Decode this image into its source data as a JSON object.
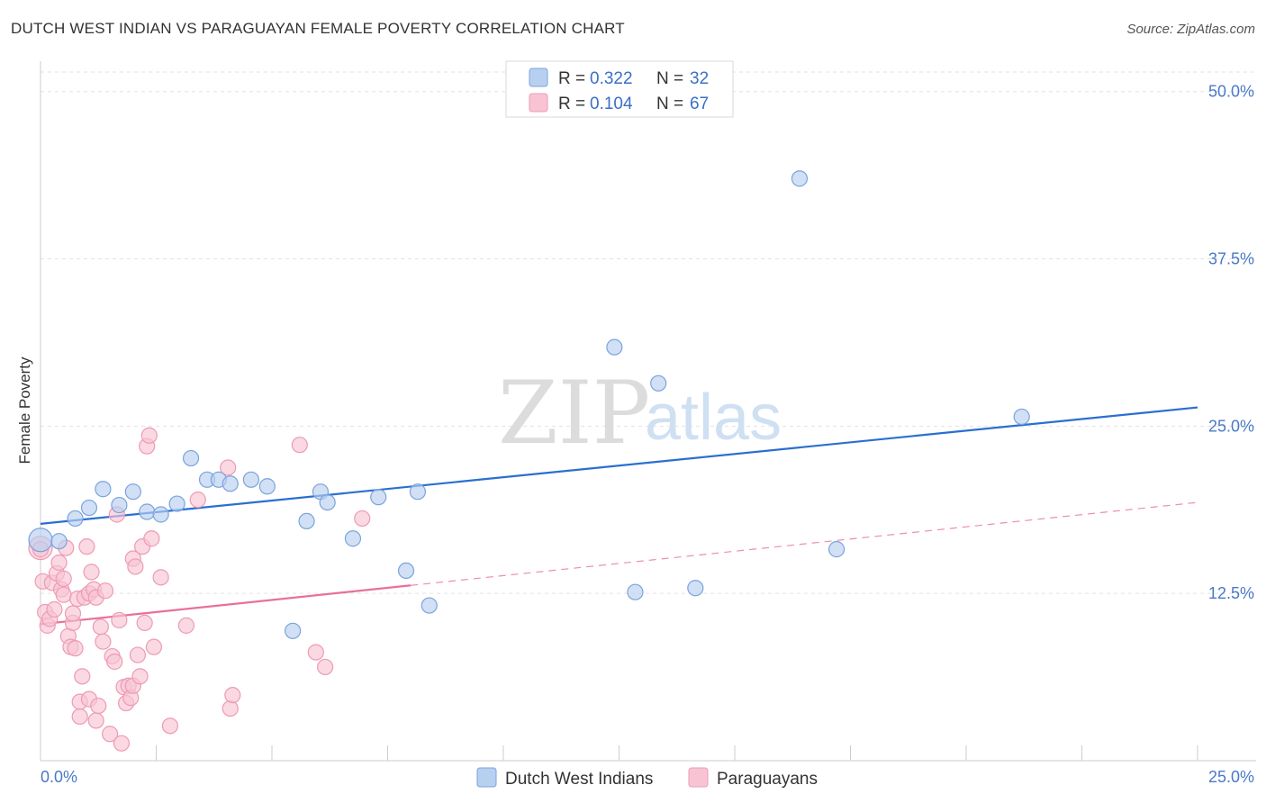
{
  "title": "DUTCH WEST INDIAN VS PARAGUAYAN FEMALE POVERTY CORRELATION CHART",
  "source": "Source: ZipAtlas.com",
  "watermark": {
    "zip": "ZIP",
    "atlas": "atlas"
  },
  "colors": {
    "blue_fill": "#b8d0f0",
    "blue_stroke": "#7aa3dd",
    "blue_line": "#2a6fd0",
    "pink_fill": "#f8c4d4",
    "pink_stroke": "#ee9ab5",
    "pink_line": "#e8709a",
    "grid": "#e2e2e2",
    "axis_label": "#4a79c8"
  },
  "legend": {
    "rows": [
      {
        "r_label": "R = ",
        "r_value": "0.322",
        "n_label": "N = ",
        "n_value": "32"
      },
      {
        "r_label": "R = ",
        "r_value": "0.104",
        "n_label": "N = ",
        "n_value": "67"
      }
    ]
  },
  "bottom_legend": [
    "Dutch West Indians",
    "Paraguayans"
  ],
  "chart_data": {
    "type": "scatter",
    "title": "DUTCH WEST INDIAN VS PARAGUAYAN FEMALE POVERTY CORRELATION CHART",
    "xlabel": "",
    "ylabel": "Female Poverty",
    "xlim": [
      0,
      25
    ],
    "ylim": [
      0,
      52
    ],
    "x_tick_labels": [
      "0.0%",
      "25.0%"
    ],
    "y_ticks": [
      12.5,
      25.0,
      37.5,
      50.0
    ],
    "y_tick_labels": [
      "12.5%",
      "25.0%",
      "37.5%",
      "50.0%"
    ],
    "grid": true,
    "legend_position": "top-center",
    "series": [
      {
        "name": "Dutch West Indians",
        "R": 0.322,
        "N": 32,
        "trend": {
          "x": [
            0,
            25
          ],
          "y": [
            17.7,
            26.4
          ],
          "style": "solid"
        },
        "points": [
          [
            0.0,
            16.5
          ],
          [
            0.4,
            16.4
          ],
          [
            0.75,
            18.1
          ],
          [
            1.05,
            18.9
          ],
          [
            1.35,
            20.3
          ],
          [
            1.7,
            19.1
          ],
          [
            2.0,
            20.1
          ],
          [
            2.3,
            18.6
          ],
          [
            2.6,
            18.4
          ],
          [
            2.95,
            19.2
          ],
          [
            3.25,
            22.6
          ],
          [
            3.6,
            21.0
          ],
          [
            3.85,
            21.0
          ],
          [
            4.1,
            20.7
          ],
          [
            4.55,
            21.0
          ],
          [
            4.9,
            20.5
          ],
          [
            5.45,
            9.7
          ],
          [
            5.75,
            17.9
          ],
          [
            6.05,
            20.1
          ],
          [
            6.2,
            19.3
          ],
          [
            6.75,
            16.6
          ],
          [
            7.3,
            19.7
          ],
          [
            7.9,
            14.2
          ],
          [
            8.15,
            20.1
          ],
          [
            8.4,
            11.6
          ],
          [
            12.4,
            30.9
          ],
          [
            12.85,
            12.6
          ],
          [
            13.35,
            28.2
          ],
          [
            14.15,
            12.9
          ],
          [
            16.4,
            43.5
          ],
          [
            17.2,
            15.8
          ],
          [
            21.2,
            25.7
          ]
        ]
      },
      {
        "name": "Paraguayans",
        "R": 0.104,
        "N": 67,
        "trend": {
          "x": [
            0,
            8.0
          ],
          "y": [
            10.2,
            13.1
          ],
          "style": "solid",
          "extended": {
            "x": [
              8.0,
              25
            ],
            "y": [
              13.1,
              19.3
            ],
            "style": "dashed"
          }
        },
        "points": [
          [
            0.0,
            15.9
          ],
          [
            0.05,
            13.4
          ],
          [
            0.1,
            11.1
          ],
          [
            0.15,
            10.1
          ],
          [
            0.2,
            10.6
          ],
          [
            0.25,
            13.3
          ],
          [
            0.3,
            11.3
          ],
          [
            0.35,
            14.0
          ],
          [
            0.4,
            14.8
          ],
          [
            0.45,
            12.8
          ],
          [
            0.5,
            13.6
          ],
          [
            0.5,
            12.4
          ],
          [
            0.55,
            15.9
          ],
          [
            0.6,
            9.3
          ],
          [
            0.65,
            8.5
          ],
          [
            0.7,
            10.3
          ],
          [
            0.7,
            11.0
          ],
          [
            0.75,
            8.4
          ],
          [
            0.8,
            12.1
          ],
          [
            0.85,
            4.4
          ],
          [
            0.85,
            3.3
          ],
          [
            0.9,
            6.3
          ],
          [
            0.95,
            12.2
          ],
          [
            1.0,
            16.0
          ],
          [
            1.05,
            4.6
          ],
          [
            1.05,
            12.5
          ],
          [
            1.1,
            14.1
          ],
          [
            1.15,
            12.8
          ],
          [
            1.2,
            12.2
          ],
          [
            1.2,
            3.0
          ],
          [
            1.25,
            4.1
          ],
          [
            1.3,
            10.0
          ],
          [
            1.35,
            8.9
          ],
          [
            1.4,
            12.7
          ],
          [
            1.5,
            2.0
          ],
          [
            1.55,
            7.8
          ],
          [
            1.6,
            7.4
          ],
          [
            1.65,
            18.4
          ],
          [
            1.7,
            10.5
          ],
          [
            1.75,
            1.3
          ],
          [
            1.8,
            5.5
          ],
          [
            1.85,
            4.3
          ],
          [
            1.9,
            5.6
          ],
          [
            1.95,
            4.7
          ],
          [
            2.0,
            5.6
          ],
          [
            2.0,
            15.1
          ],
          [
            2.05,
            14.5
          ],
          [
            2.1,
            7.9
          ],
          [
            2.15,
            6.3
          ],
          [
            2.2,
            16.0
          ],
          [
            2.25,
            10.3
          ],
          [
            2.3,
            23.5
          ],
          [
            2.35,
            24.3
          ],
          [
            2.4,
            16.6
          ],
          [
            2.45,
            8.5
          ],
          [
            2.6,
            13.7
          ],
          [
            2.8,
            2.6
          ],
          [
            3.15,
            10.1
          ],
          [
            3.4,
            19.5
          ],
          [
            4.05,
            21.9
          ],
          [
            4.1,
            3.9
          ],
          [
            4.15,
            4.9
          ],
          [
            5.6,
            23.6
          ],
          [
            5.95,
            8.1
          ],
          [
            6.15,
            7.0
          ],
          [
            6.95,
            18.1
          ],
          [
            0.0,
            15.8
          ]
        ]
      }
    ]
  }
}
